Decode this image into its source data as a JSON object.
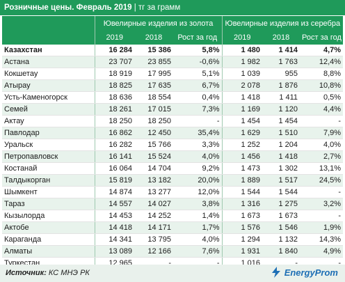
{
  "header": {
    "title": "Розничные цены. Февраль 2019",
    "unit": "тг за грамм"
  },
  "groups": {
    "gold": "Ювелирные изделия из золота",
    "silver": "Ювелирные изделия из серебра"
  },
  "years": {
    "y2019": "2019",
    "y2018": "2018",
    "growth": "Рост за год"
  },
  "rows": [
    {
      "name": "Казахстан",
      "g19": "16 284",
      "g18": "15 386",
      "gg": "5,8%",
      "s19": "1 480",
      "s18": "1 414",
      "sg": "4,7%"
    },
    {
      "name": "Астана",
      "g19": "23 707",
      "g18": "23 855",
      "gg": "-0,6%",
      "s19": "1 982",
      "s18": "1 763",
      "sg": "12,4%"
    },
    {
      "name": "Кокшетау",
      "g19": "18 919",
      "g18": "17 995",
      "gg": "5,1%",
      "s19": "1 039",
      "s18": "955",
      "sg": "8,8%"
    },
    {
      "name": "Атырау",
      "g19": "18 825",
      "g18": "17 635",
      "gg": "6,7%",
      "s19": "2 078",
      "s18": "1 876",
      "sg": "10,8%"
    },
    {
      "name": "Усть-Каменогорск",
      "g19": "18 636",
      "g18": "18 554",
      "gg": "0,4%",
      "s19": "1 418",
      "s18": "1 411",
      "sg": "0,5%"
    },
    {
      "name": "Семей",
      "g19": "18 261",
      "g18": "17 015",
      "gg": "7,3%",
      "s19": "1 169",
      "s18": "1 120",
      "sg": "4,4%"
    },
    {
      "name": "Актау",
      "g19": "18 250",
      "g18": "18 250",
      "gg": "-",
      "s19": "1 454",
      "s18": "1 454",
      "sg": "-"
    },
    {
      "name": "Павлодар",
      "g19": "16 862",
      "g18": "12 450",
      "gg": "35,4%",
      "s19": "1 629",
      "s18": "1 510",
      "sg": "7,9%"
    },
    {
      "name": "Уральск",
      "g19": "16 282",
      "g18": "15 766",
      "gg": "3,3%",
      "s19": "1 252",
      "s18": "1 204",
      "sg": "4,0%"
    },
    {
      "name": "Петропавловск",
      "g19": "16 141",
      "g18": "15 524",
      "gg": "4,0%",
      "s19": "1 456",
      "s18": "1 418",
      "sg": "2,7%"
    },
    {
      "name": "Костанай",
      "g19": "16 064",
      "g18": "14 704",
      "gg": "9,2%",
      "s19": "1 473",
      "s18": "1 302",
      "sg": "13,1%"
    },
    {
      "name": "Талдыкорган",
      "g19": "15 819",
      "g18": "13 182",
      "gg": "20,0%",
      "s19": "1 889",
      "s18": "1 517",
      "sg": "24,5%"
    },
    {
      "name": "Шымкент",
      "g19": "14 874",
      "g18": "13 277",
      "gg": "12,0%",
      "s19": "1 544",
      "s18": "1 544",
      "sg": "-"
    },
    {
      "name": "Тараз",
      "g19": "14 557",
      "g18": "14 027",
      "gg": "3,8%",
      "s19": "1 316",
      "s18": "1 275",
      "sg": "3,2%"
    },
    {
      "name": "Кызылорда",
      "g19": "14 453",
      "g18": "14 252",
      "gg": "1,4%",
      "s19": "1 673",
      "s18": "1 673",
      "sg": "-"
    },
    {
      "name": "Актобе",
      "g19": "14 418",
      "g18": "14 171",
      "gg": "1,7%",
      "s19": "1 576",
      "s18": "1 546",
      "sg": "1,9%"
    },
    {
      "name": "Караганда",
      "g19": "14 341",
      "g18": "13 795",
      "gg": "4,0%",
      "s19": "1 294",
      "s18": "1 132",
      "sg": "14,3%"
    },
    {
      "name": "Алматы",
      "g19": "13 089",
      "g18": "12 166",
      "gg": "7,6%",
      "s19": "1 931",
      "s18": "1 840",
      "sg": "4,9%"
    },
    {
      "name": "Туркестан",
      "g19": "12 965",
      "g18": "-",
      "gg": "-",
      "s19": "1 016",
      "s18": "-",
      "sg": "-"
    }
  ],
  "footer": {
    "source_label": "Источник:",
    "source_value": "КС МНЭ РК",
    "logo_text": "EnergyProm",
    "logo_icon": "energyprom-logo-icon"
  },
  "colors": {
    "header_green": "#1f9a5a",
    "row_alt": "#e8f3ec",
    "logo_blue": "#1e6fb5"
  }
}
